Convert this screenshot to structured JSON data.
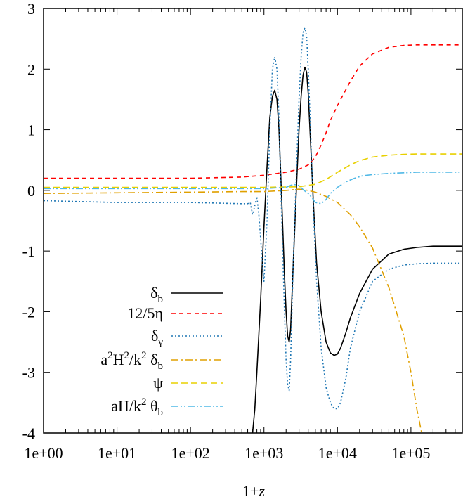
{
  "chart_data": {
    "type": "line",
    "title": "",
    "xlabel": "1+z",
    "ylabel": "",
    "xscale": "log",
    "xlim": [
      1,
      500000
    ],
    "ylim": [
      -4,
      3
    ],
    "grid": false,
    "legend_position": "bottom-left",
    "x_tick_labels": [
      "1e+00",
      "1e+01",
      "1e+02",
      "1e+03",
      "1e+04",
      "1e+05"
    ],
    "y_tick_labels": [
      "3",
      "2",
      "1",
      "0",
      "-1",
      "-2",
      "-3",
      "-4"
    ],
    "series": [
      {
        "name": "δ_b",
        "legend": {
          "base": "δ",
          "sub": "b"
        },
        "color": "#000000",
        "dash": "solid",
        "x": [
          700,
          750,
          800,
          900,
          1000,
          1100,
          1200,
          1300,
          1400,
          1500,
          1600,
          1700,
          1800,
          1900,
          2000,
          2100,
          2200,
          2300,
          2500,
          2800,
          3000,
          3200,
          3400,
          3600,
          3800,
          4000,
          4300,
          4700,
          5200,
          6000,
          7000,
          8000,
          9000,
          10000,
          11000,
          13000,
          15000,
          20000,
          30000,
          50000,
          80000,
          120000,
          200000,
          350000,
          500000
        ],
        "y": [
          -4,
          -3.6,
          -3.0,
          -1.8,
          -0.6,
          0.4,
          1.2,
          1.55,
          1.65,
          1.5,
          1.0,
          0.2,
          -0.6,
          -1.4,
          -2.0,
          -2.4,
          -2.5,
          -2.3,
          -1.2,
          0.2,
          1.0,
          1.55,
          1.9,
          2.03,
          1.95,
          1.6,
          0.8,
          -0.2,
          -1.2,
          -2.0,
          -2.5,
          -2.68,
          -2.72,
          -2.7,
          -2.6,
          -2.35,
          -2.1,
          -1.7,
          -1.3,
          -1.05,
          -0.97,
          -0.94,
          -0.92,
          -0.92,
          -0.92
        ]
      },
      {
        "name": "12/5η",
        "legend": {
          "base": "12/5η"
        },
        "color": "#ff0000",
        "dash": "6,5",
        "x": [
          1,
          10,
          100,
          500,
          1000,
          2000,
          3000,
          4000,
          5000,
          6000,
          7000,
          8000,
          10000,
          15000,
          20000,
          30000,
          50000,
          80000,
          120000,
          200000,
          350000,
          500000
        ],
        "y": [
          0.2,
          0.2,
          0.2,
          0.22,
          0.25,
          0.3,
          0.35,
          0.42,
          0.55,
          0.75,
          0.95,
          1.15,
          1.4,
          1.8,
          2.05,
          2.25,
          2.36,
          2.39,
          2.4,
          2.4,
          2.4,
          2.4
        ]
      },
      {
        "name": "δ_γ",
        "legend": {
          "base": "δ",
          "sub": "γ"
        },
        "color": "#1f77b4",
        "dash": "2,3",
        "x": [
          1,
          10,
          100,
          500,
          600,
          650,
          700,
          750,
          800,
          850,
          900,
          950,
          1000,
          1100,
          1200,
          1300,
          1400,
          1500,
          1600,
          1700,
          1800,
          1900,
          2000,
          2100,
          2200,
          2300,
          2500,
          2800,
          3000,
          3200,
          3400,
          3600,
          3800,
          4000,
          4300,
          4700,
          5200,
          6000,
          7000,
          8000,
          9000,
          10000,
          11000,
          13000,
          15000,
          20000,
          30000,
          50000,
          80000,
          120000,
          200000,
          350000,
          500000
        ],
        "y": [
          -0.17,
          -0.2,
          -0.2,
          -0.22,
          -0.22,
          -0.2,
          -0.4,
          -0.25,
          -0.1,
          -0.4,
          -0.8,
          -1.2,
          -1.5,
          -0.5,
          1.0,
          2.0,
          2.2,
          2.0,
          1.2,
          0.0,
          -1.0,
          -2.0,
          -2.8,
          -3.2,
          -3.3,
          -2.8,
          -1.2,
          0.5,
          1.5,
          2.2,
          2.6,
          2.68,
          2.55,
          2.0,
          1.0,
          -0.3,
          -1.5,
          -2.6,
          -3.25,
          -3.5,
          -3.6,
          -3.6,
          -3.5,
          -3.1,
          -2.6,
          -2.0,
          -1.5,
          -1.3,
          -1.23,
          -1.21,
          -1.2,
          -1.2,
          -1.2
        ]
      },
      {
        "name": "a^2H^2/k^2 δ_b",
        "legend": {
          "base": "a",
          "sup1": "2",
          "mid1": "H",
          "sup2": "2",
          "mid2": "/k",
          "sup3": "2",
          "mid3": " δ",
          "sub": "b"
        },
        "color": "#e0a000",
        "dash": "10,4,2,4",
        "x": [
          1,
          10,
          100,
          500,
          1000,
          2000,
          3000,
          4000,
          5000,
          7000,
          10000,
          15000,
          20000,
          30000,
          50000,
          80000,
          100000,
          120000,
          140000
        ],
        "y": [
          -0.05,
          -0.04,
          -0.03,
          -0.02,
          -0.02,
          0.0,
          0.02,
          0.0,
          -0.03,
          -0.1,
          -0.2,
          -0.4,
          -0.6,
          -0.95,
          -1.6,
          -2.4,
          -3.0,
          -3.6,
          -4.0
        ]
      },
      {
        "name": "ψ",
        "legend": {
          "base": "ψ"
        },
        "color": "#e8d000",
        "dash": "9,5",
        "x": [
          1,
          10,
          100,
          1000,
          3000,
          5000,
          7000,
          10000,
          15000,
          20000,
          30000,
          50000,
          80000,
          120000,
          200000,
          350000,
          500000
        ],
        "y": [
          0.05,
          0.05,
          0.05,
          0.05,
          0.06,
          0.1,
          0.18,
          0.3,
          0.42,
          0.49,
          0.55,
          0.58,
          0.595,
          0.6,
          0.6,
          0.6,
          0.6
        ]
      },
      {
        "name": "aH/k^2 θ_b",
        "legend": {
          "base": "aH/k",
          "sup1": "2",
          "mid1": " θ",
          "sub": "b"
        },
        "color": "#4fb8e6",
        "dash": "10,3,2,3,2,3",
        "x": [
          1,
          10,
          100,
          1000,
          2000,
          2500,
          3000,
          3500,
          4000,
          4500,
          5000,
          6000,
          7000,
          8000,
          10000,
          13000,
          17000,
          22000,
          30000,
          50000,
          80000,
          120000,
          200000,
          350000,
          500000
        ],
        "y": [
          0.03,
          0.03,
          0.03,
          0.03,
          0.05,
          0.1,
          0.08,
          0.0,
          -0.05,
          -0.12,
          -0.2,
          -0.22,
          -0.15,
          -0.05,
          0.05,
          0.14,
          0.2,
          0.24,
          0.26,
          0.28,
          0.29,
          0.3,
          0.3,
          0.3,
          0.3
        ]
      }
    ]
  }
}
